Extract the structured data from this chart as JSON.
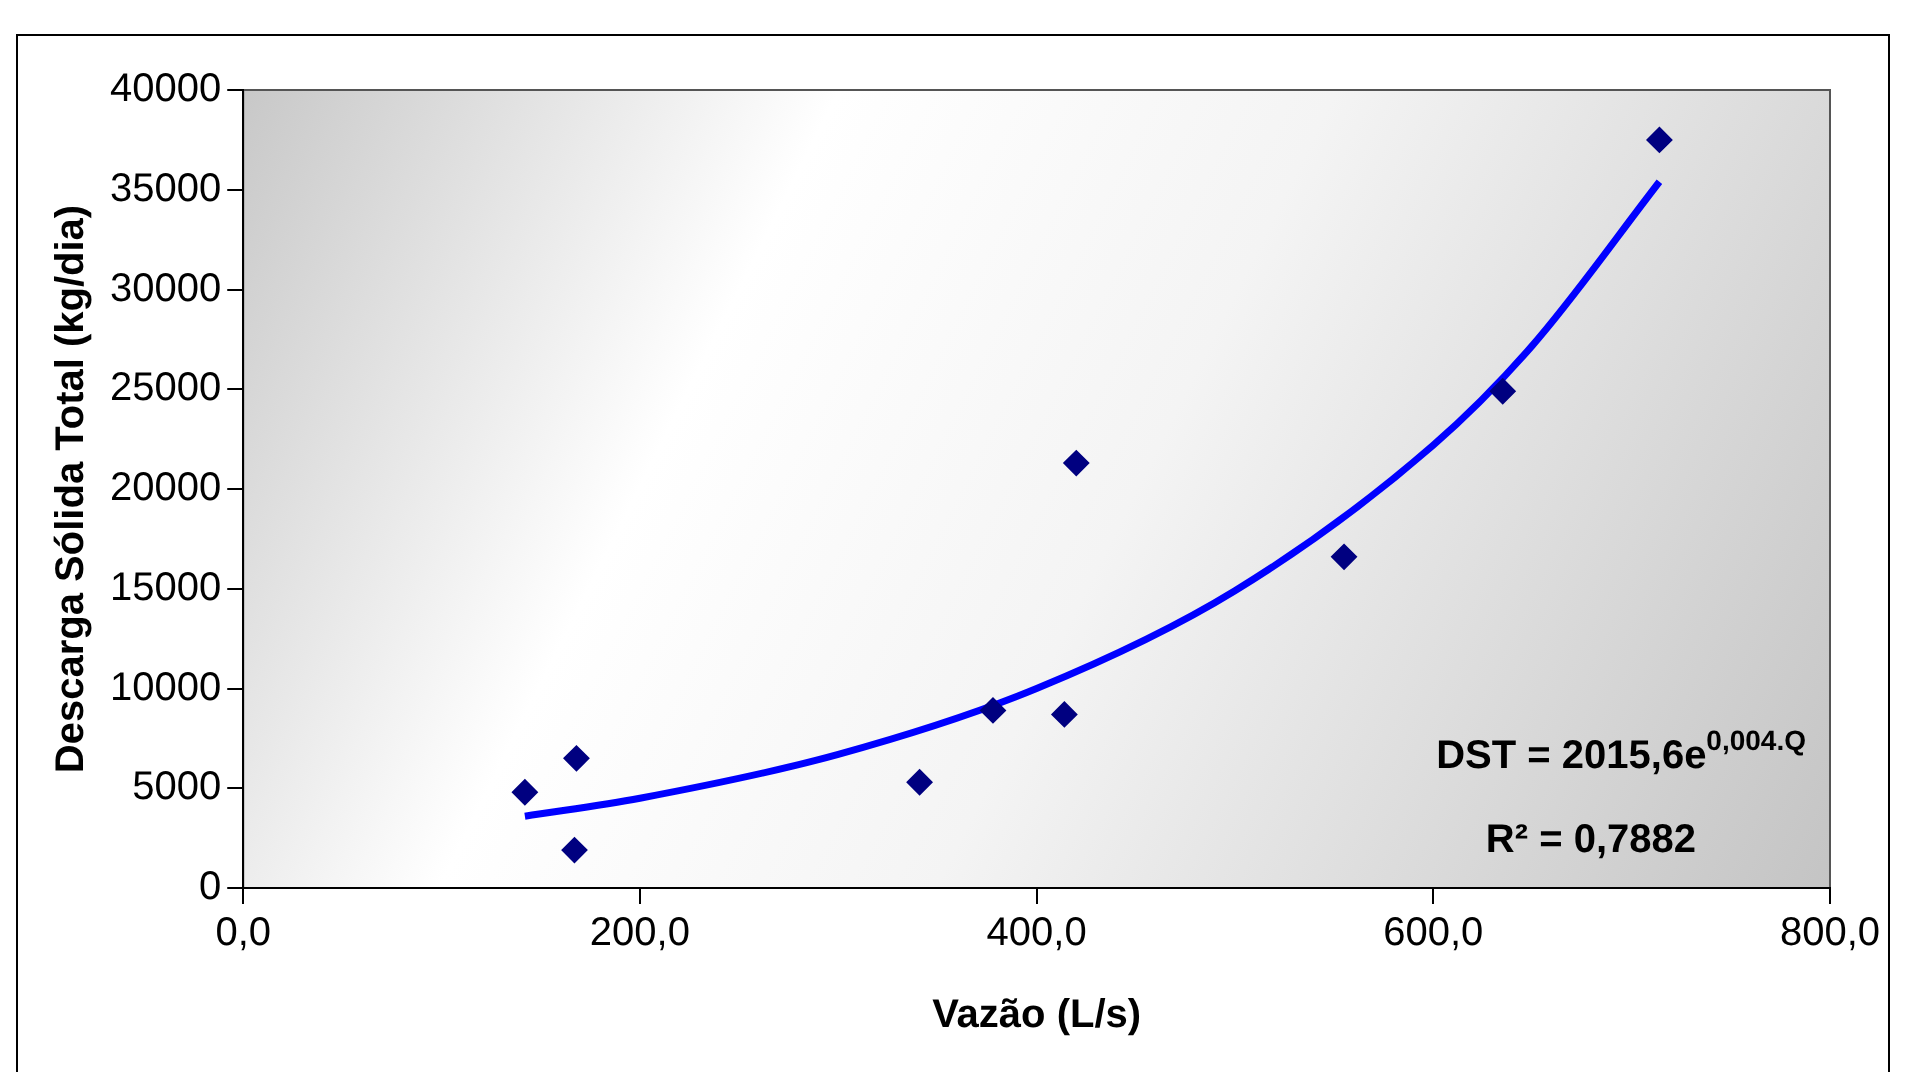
{
  "chart_data": {
    "type": "scatter",
    "xlabel": "Vazão (L/s)",
    "ylabel": "Descarga Sólida Total (kg/dia)",
    "annotations": [
      "DST = 2015,6e$^{0,004.Q}$",
      "R² = 0,7882"
    ],
    "series": [
      {
        "color": "#000080",
        "marker": "diamond",
        "x": [
          142,
          168,
          167,
          341,
          378,
          414,
          420,
          555,
          635,
          714
        ],
        "values": [
          4800,
          6500,
          1900,
          5300,
          8900,
          8700,
          21300,
          16600,
          24900,
          37500
        ]
      },
      {
        "type": "line",
        "color": "#0000ff",
        "marker": "none",
        "line_style": "solid",
        "x": [
          142,
          200,
          300,
          400,
          500,
          600,
          650,
          714
        ],
        "values": [
          3600,
          4500,
          6700,
          10000,
          14900,
          22200,
          27200,
          35400
        ]
      }
    ],
    "xlim": [
      0,
      800
    ],
    "xticks": [
      {
        "value": 0,
        "label": "0,0"
      },
      {
        "value": 200,
        "label": "200,0"
      },
      {
        "value": 400,
        "label": "400,0"
      },
      {
        "value": 600,
        "label": "600,0"
      },
      {
        "value": 800,
        "label": "800,0"
      }
    ],
    "ylim": [
      0,
      40000
    ],
    "yticks": [
      0,
      5000,
      10000,
      15000,
      20000,
      25000,
      30000,
      35000,
      40000
    ],
    "grid": false,
    "legend": false
  }
}
